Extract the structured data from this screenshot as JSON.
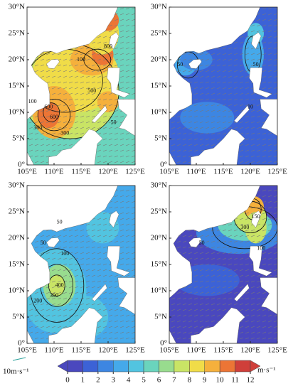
{
  "xtick_labels": [
    "105°E",
    "110°E",
    "115°E",
    "120°E",
    "125°E"
  ],
  "ytick_labels": [
    "0°",
    "5°N",
    "10°N",
    "15°N",
    "20°N",
    "25°N",
    "30°N"
  ],
  "panels": [
    {
      "contour_labels": [
        "800",
        "600",
        "600",
        "300",
        "500",
        "100",
        "50",
        "300",
        "100"
      ]
    },
    {
      "contour_labels": [
        "50",
        "50",
        "10"
      ]
    },
    {
      "contour_labels": [
        "400",
        "300",
        "200",
        "50",
        "50",
        "100"
      ]
    },
    {
      "contour_labels": [
        "300",
        "50",
        "100",
        "150"
      ]
    }
  ],
  "reference_vector": "10m·s⁻¹",
  "colorbar": {
    "unit": "m·s⁻¹",
    "ticks": [
      0,
      1,
      2,
      3,
      4,
      5,
      6,
      7,
      8,
      9,
      10,
      11,
      12
    ],
    "colors": [
      "#4a48be",
      "#3c62d6",
      "#3d86e2",
      "#45a9ea",
      "#52c4e0",
      "#6ad4bd",
      "#98dc8e",
      "#c9e465",
      "#f0dc48",
      "#f5b03c",
      "#ec7535",
      "#cf3f3a"
    ]
  }
}
